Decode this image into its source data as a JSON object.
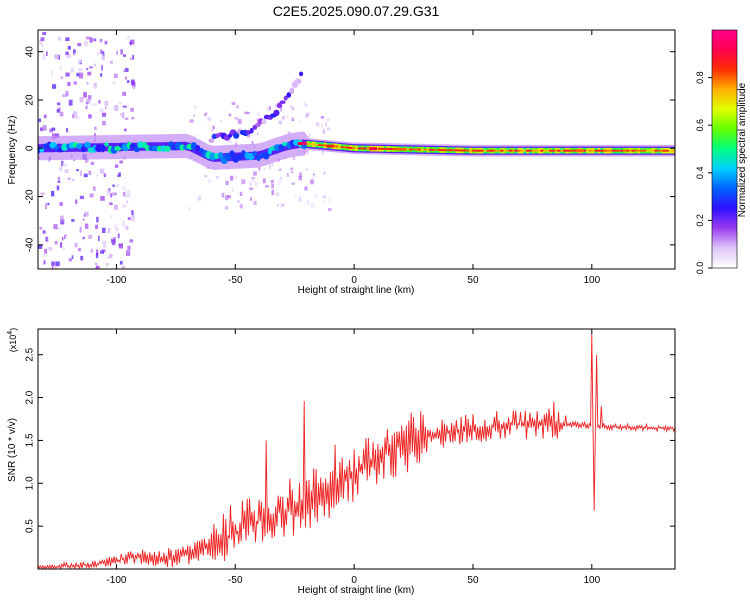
{
  "title": "C2E5.2025.090.07.29.G31",
  "chart_data": [
    {
      "type": "heatmap",
      "xlabel": "Height of straight line (km)",
      "ylabel": "Frequency (Hz)",
      "xlim": [
        -133,
        135
      ],
      "ylim": [
        -50,
        49
      ],
      "xticks": [
        -100,
        -50,
        0,
        50,
        100
      ],
      "yticks": [
        -40,
        -20,
        0,
        20,
        40
      ],
      "colorbar": {
        "label": "Normalized spectral amplitude",
        "range": [
          0,
          1
        ],
        "ticks": [
          "0.0",
          "0.2",
          "0.4",
          "0.6",
          "0.8"
        ],
        "tick_values": [
          0,
          0.2,
          0.4,
          0.6,
          0.8
        ],
        "colors": [
          "#ffffff",
          "#e0c8f8",
          "#9a3cf0",
          "#3010ff",
          "#0060ff",
          "#00d0ff",
          "#00ff80",
          "#60ff00",
          "#e0ff00",
          "#ffb000",
          "#ff3000",
          "#ff0050",
          "#ff0090"
        ]
      },
      "ridge": [
        {
          "x": -133,
          "y": 0
        },
        {
          "x": -70,
          "y": 1
        },
        {
          "x": -60,
          "y": -4
        },
        {
          "x": -40,
          "y": -3
        },
        {
          "x": -28,
          "y": 1
        },
        {
          "x": -22,
          "y": 2
        },
        {
          "x": 0,
          "y": 0
        },
        {
          "x": 50,
          "y": -1
        },
        {
          "x": 135,
          "y": -1
        }
      ],
      "upper_branch": [
        {
          "x": -60,
          "y": 4
        },
        {
          "x": -45,
          "y": 7
        },
        {
          "x": -35,
          "y": 13
        },
        {
          "x": -27,
          "y": 22
        },
        {
          "x": -22,
          "y": 31
        }
      ]
    },
    {
      "type": "line",
      "xlabel": "Height of straight line (km)",
      "ylabel": "SNR (10 * v/v)",
      "ymultiplier": "(x10",
      "ymultiplier_exp": "4",
      "ymultiplier_close": ")",
      "xlim": [
        -133,
        135
      ],
      "ylim": [
        0,
        2.8
      ],
      "xticks": [
        -100,
        -50,
        0,
        50,
        100
      ],
      "yticks": [
        "0.5",
        "1.0",
        "1.5",
        "2.0",
        "2.5"
      ],
      "ytick_values": [
        0.5,
        1.0,
        1.5,
        2.0,
        2.5
      ],
      "color": "#ee2222",
      "trend": [
        {
          "x": -133,
          "y": 0.02
        },
        {
          "x": -110,
          "y": 0.05
        },
        {
          "x": -90,
          "y": 0.15
        },
        {
          "x": -75,
          "y": 0.12
        },
        {
          "x": -60,
          "y": 0.3
        },
        {
          "x": -40,
          "y": 0.55
        },
        {
          "x": -20,
          "y": 0.8
        },
        {
          "x": 0,
          "y": 1.1
        },
        {
          "x": 20,
          "y": 1.45
        },
        {
          "x": 40,
          "y": 1.6
        },
        {
          "x": 60,
          "y": 1.68
        },
        {
          "x": 80,
          "y": 1.7
        },
        {
          "x": 95,
          "y": 1.68
        },
        {
          "x": 110,
          "y": 1.66
        },
        {
          "x": 135,
          "y": 1.64
        }
      ],
      "spikes": [
        {
          "x": -21,
          "y": 1.96
        },
        {
          "x": -37,
          "y": 1.5
        },
        {
          "x": -8,
          "y": 1.45
        },
        {
          "x": 84,
          "y": 1.95
        },
        {
          "x": 100,
          "y": 2.75
        },
        {
          "x": 101,
          "y": 0.68
        },
        {
          "x": 102,
          "y": 2.5
        },
        {
          "x": 104,
          "y": 1.9
        }
      ]
    }
  ]
}
